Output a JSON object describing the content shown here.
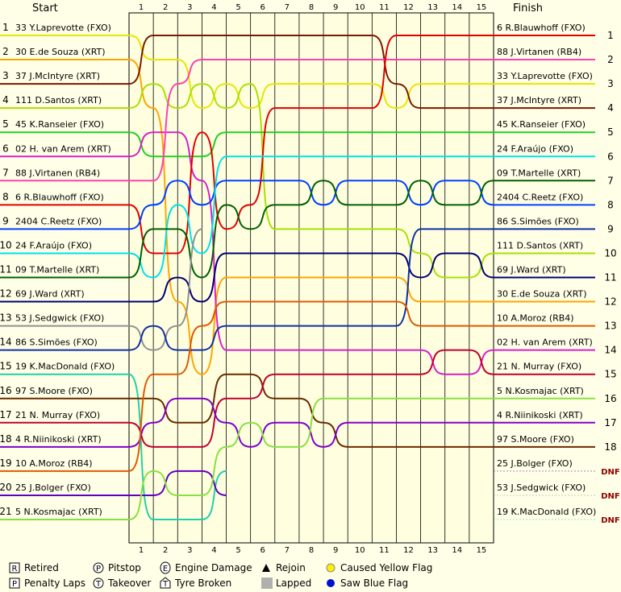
{
  "chart_data": {
    "type": "line",
    "start_heading": "Start",
    "finish_heading": "Finish",
    "x": [
      1,
      2,
      3,
      4,
      5,
      6,
      7,
      8,
      9,
      10,
      11,
      12,
      13,
      14,
      15
    ],
    "ylim": [
      1,
      21
    ],
    "series": [
      {
        "name": "33 Y.Laprevotte (FXO)",
        "color": "#e6e600",
        "start": 1,
        "values": [
          2,
          2,
          4,
          3,
          4,
          3,
          3,
          3,
          3,
          3,
          4,
          3,
          3,
          3,
          3
        ]
      },
      {
        "name": "30 E.de Souza (XRT)",
        "color": "#ffa500",
        "start": 2,
        "values": [
          4,
          12,
          15,
          11,
          11,
          11,
          11,
          11,
          11,
          11,
          11,
          12,
          12,
          12,
          12
        ]
      },
      {
        "name": "37 J.McIntyre (XRT)",
        "color": "#7a1a00",
        "start": 3,
        "values": [
          1,
          1,
          1,
          1,
          1,
          1,
          1,
          1,
          1,
          1,
          3,
          4,
          4,
          4,
          4
        ]
      },
      {
        "name": "111 D.Santos (XRT)",
        "color": "#a8e000",
        "start": 4,
        "values": [
          3,
          4,
          3,
          4,
          3,
          9,
          9,
          9,
          9,
          9,
          9,
          10,
          11,
          11,
          10
        ]
      },
      {
        "name": "45 K.Ranseier (FXO)",
        "color": "#20d020",
        "start": 5,
        "values": [
          6,
          6,
          6,
          5,
          5,
          5,
          5,
          5,
          5,
          5,
          5,
          5,
          5,
          5,
          5
        ]
      },
      {
        "name": "02 H. van Arem (XRT)",
        "color": "#d820c8",
        "start": 6,
        "values": [
          5,
          5,
          7,
          14,
          14,
          14,
          14,
          14,
          14,
          14,
          14,
          14,
          15,
          15,
          14
        ]
      },
      {
        "name": "88 J.Virtanen (RB4)",
        "color": "#ff40b0",
        "start": 7,
        "values": [
          7,
          3,
          2,
          2,
          2,
          2,
          2,
          2,
          2,
          2,
          2,
          2,
          2,
          2,
          2
        ]
      },
      {
        "name": "6 R.Blauwhoff (FXO)",
        "color": "#e00000",
        "start": 8,
        "values": [
          10,
          10,
          5,
          9,
          8,
          4,
          4,
          4,
          4,
          4,
          1,
          1,
          1,
          1,
          1
        ]
      },
      {
        "name": "2404 C.Reetz (FXO)",
        "color": "#0040ff",
        "start": 9,
        "values": [
          8,
          7,
          8,
          7,
          7,
          7,
          7,
          8,
          7,
          7,
          7,
          8,
          7,
          7,
          8
        ]
      },
      {
        "name": "24 F.Araújo (FXO)",
        "color": "#00e0e8",
        "start": 10,
        "values": [
          11,
          8,
          10,
          6,
          6,
          6,
          6,
          6,
          6,
          6,
          6,
          6,
          6,
          6,
          6
        ]
      },
      {
        "name": "09 T.Martelle (XRT)",
        "color": "#006000",
        "start": 11,
        "values": [
          9,
          9,
          11,
          8,
          9,
          8,
          8,
          7,
          8,
          8,
          8,
          7,
          8,
          8,
          7
        ]
      },
      {
        "name": "69 J.Ward (XRT)",
        "color": "#000070",
        "start": 12,
        "values": [
          12,
          11,
          12,
          10,
          10,
          10,
          10,
          10,
          10,
          10,
          10,
          11,
          10,
          10,
          11
        ]
      },
      {
        "name": "53 J.Sedgwick (FXO)",
        "color": "#909090",
        "start": 13,
        "values": [
          14,
          13,
          9,
          null,
          null,
          null,
          null,
          null,
          null,
          null,
          null,
          null,
          null,
          null,
          null
        ]
      },
      {
        "name": "86 S.Simões (FXO)",
        "color": "#1030a0",
        "start": 14,
        "values": [
          13,
          14,
          14,
          13,
          13,
          13,
          13,
          13,
          13,
          13,
          13,
          9,
          9,
          9,
          9
        ]
      },
      {
        "name": "19 K.MacDonald (FXO)",
        "color": "#20d0a8",
        "start": 15,
        "values": [
          21,
          21,
          21,
          19,
          null,
          null,
          null,
          null,
          null,
          null,
          null,
          null,
          null,
          null,
          null
        ]
      },
      {
        "name": "97 S.Moore (FXO)",
        "color": "#6a2a00",
        "start": 16,
        "values": [
          16,
          17,
          17,
          15,
          15,
          16,
          16,
          17,
          18,
          18,
          18,
          18,
          18,
          18,
          18
        ]
      },
      {
        "name": "21 N. Murray (FXO)",
        "color": "#c00030",
        "start": 17,
        "values": [
          18,
          18,
          18,
          16,
          16,
          15,
          15,
          15,
          15,
          15,
          15,
          15,
          14,
          14,
          15
        ]
      },
      {
        "name": "4 R.Niinikoski (XRT)",
        "color": "#8000c8",
        "start": 18,
        "values": [
          17,
          16,
          16,
          17,
          18,
          17,
          17,
          18,
          17,
          17,
          17,
          17,
          17,
          17,
          17
        ]
      },
      {
        "name": "10 A.Moroz (RB4)",
        "color": "#e05a00",
        "start": 19,
        "values": [
          15,
          15,
          13,
          12,
          12,
          12,
          12,
          12,
          12,
          12,
          12,
          13,
          13,
          13,
          13
        ]
      },
      {
        "name": "25 J.Bolger (FXO)",
        "color": "#6000c0",
        "start": 20,
        "values": [
          20,
          19,
          19,
          20,
          null,
          null,
          null,
          null,
          null,
          null,
          null,
          null,
          null,
          null,
          null
        ]
      },
      {
        "name": "5 N.Kosmajac (XRT)",
        "color": "#88e040",
        "start": 21,
        "values": [
          19,
          20,
          20,
          18,
          17,
          18,
          18,
          16,
          16,
          16,
          16,
          16,
          16,
          16,
          16
        ]
      }
    ],
    "finish_order": [
      "6 R.Blauwhoff (FXO)",
      "88 J.Virtanen (RB4)",
      "33 Y.Laprevotte (FXO)",
      "37 J.McIntyre (XRT)",
      "45 K.Ranseier (FXO)",
      "24 F.Araújo (FXO)",
      "09 T.Martelle (XRT)",
      "2404 C.Reetz (FXO)",
      "86 S.Simões (FXO)",
      "111 D.Santos (XRT)",
      "69 J.Ward (XRT)",
      "30 E.de Souza (XRT)",
      "10 A.Moroz (RB4)",
      "02 H. van Arem (XRT)",
      "21 N. Murray (FXO)",
      "5 N.Kosmajac (XRT)",
      "4 R.Niinikoski (XRT)",
      "97 S.Moore (FXO)",
      "25 J.Bolger (FXO)",
      "53 J.Sedgwick (FXO)",
      "19 K.MacDonald (FXO)"
    ],
    "finish_positions": [
      1,
      2,
      3,
      4,
      5,
      6,
      7,
      8,
      9,
      10,
      11,
      12,
      13,
      14,
      15,
      16,
      17,
      18,
      "DNF",
      "DNF",
      "DNF"
    ],
    "legend": [
      {
        "symbol": "R",
        "label": "Retired"
      },
      {
        "symbol": "P",
        "label": "Pitstop"
      },
      {
        "symbol": "E",
        "label": "Engine Damage"
      },
      {
        "symbol": "",
        "label": "Rejoin"
      },
      {
        "symbol": "",
        "label": "Caused Yellow Flag"
      },
      {
        "symbol": "P",
        "label": "Penalty Laps"
      },
      {
        "symbol": "T",
        "label": "Takeover"
      },
      {
        "symbol": "T",
        "label": "Tyre Broken"
      },
      {
        "symbol": "",
        "label": "Lapped"
      },
      {
        "symbol": "",
        "label": "Saw Blue Flag"
      }
    ]
  }
}
